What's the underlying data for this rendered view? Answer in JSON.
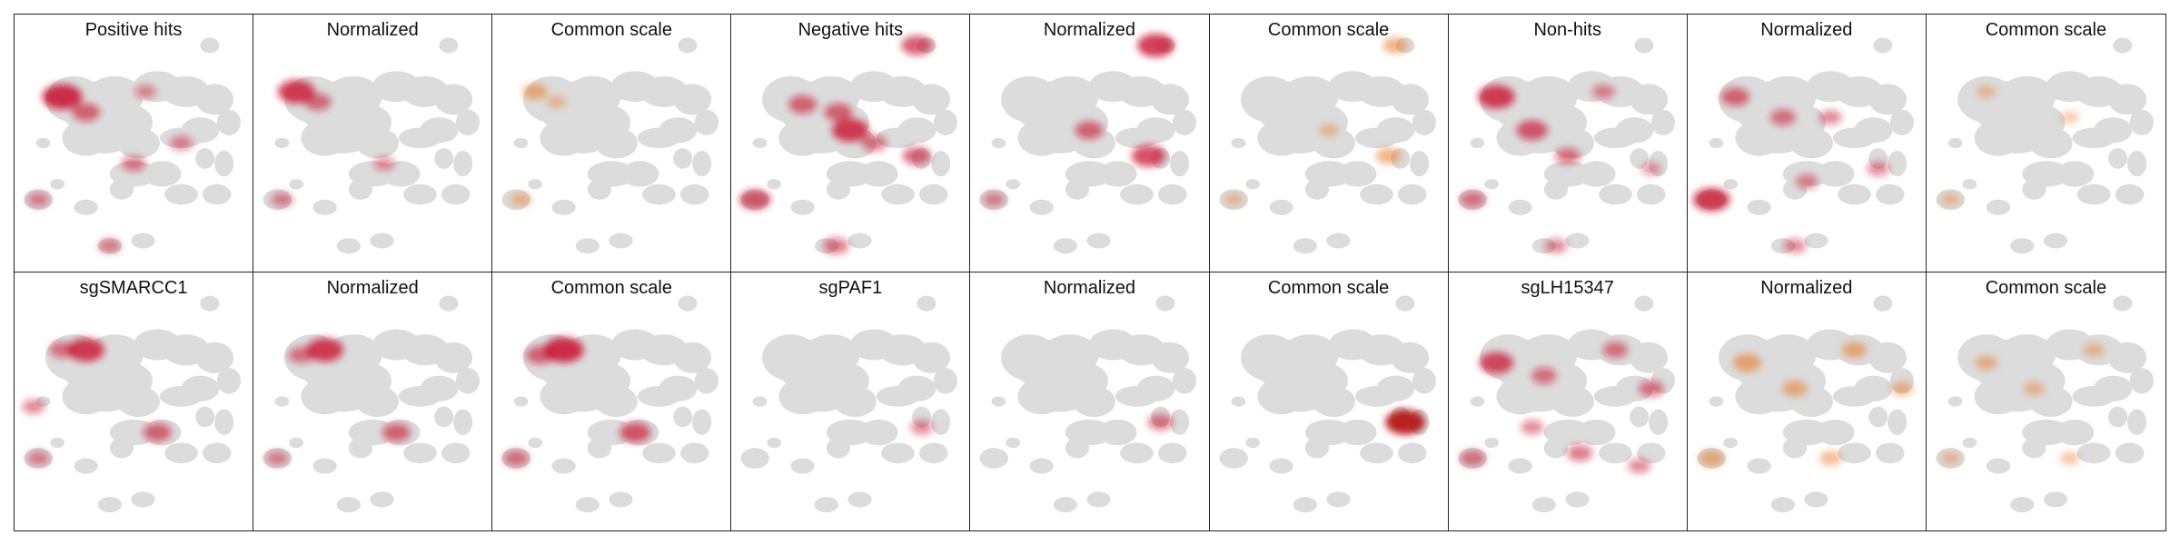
{
  "figure": {
    "panels": [
      {
        "title": "Positive hits",
        "hot": [
          [
            0.2,
            0.32,
            1.0
          ],
          [
            0.3,
            0.38,
            0.6
          ],
          [
            0.55,
            0.3,
            0.35
          ],
          [
            0.7,
            0.5,
            0.4
          ],
          [
            0.1,
            0.72,
            0.4
          ],
          [
            0.5,
            0.58,
            0.45
          ],
          [
            0.4,
            0.9,
            0.4
          ]
        ],
        "color": "#c8102e"
      },
      {
        "title": "Normalized",
        "hot": [
          [
            0.18,
            0.3,
            0.9
          ],
          [
            0.27,
            0.34,
            0.55
          ],
          [
            0.55,
            0.58,
            0.35
          ],
          [
            0.12,
            0.72,
            0.4
          ]
        ],
        "color": "#c8102e"
      },
      {
        "title": "Common scale",
        "hot": [
          [
            0.18,
            0.3,
            0.5
          ],
          [
            0.27,
            0.34,
            0.3
          ],
          [
            0.12,
            0.72,
            0.35
          ]
        ],
        "color": "#e87a2c"
      },
      {
        "title": "Negative hits",
        "hot": [
          [
            0.78,
            0.12,
            0.7
          ],
          [
            0.3,
            0.35,
            0.6
          ],
          [
            0.5,
            0.45,
            0.9
          ],
          [
            0.45,
            0.38,
            0.6
          ],
          [
            0.1,
            0.72,
            0.7
          ],
          [
            0.78,
            0.55,
            0.6
          ],
          [
            0.44,
            0.9,
            0.5
          ],
          [
            0.6,
            0.5,
            0.5
          ]
        ],
        "color": "#c8102e"
      },
      {
        "title": "Normalized",
        "hot": [
          [
            0.78,
            0.12,
            0.9
          ],
          [
            0.5,
            0.45,
            0.6
          ],
          [
            0.75,
            0.55,
            0.8
          ],
          [
            0.1,
            0.72,
            0.4
          ]
        ],
        "color": "#c8102e"
      },
      {
        "title": "Common scale",
        "hot": [
          [
            0.78,
            0.12,
            0.5
          ],
          [
            0.5,
            0.45,
            0.3
          ],
          [
            0.75,
            0.55,
            0.5
          ],
          [
            0.1,
            0.72,
            0.3
          ]
        ],
        "color": "#e87a2c"
      },
      {
        "title": "Non-hits",
        "hot": [
          [
            0.2,
            0.32,
            0.9
          ],
          [
            0.35,
            0.45,
            0.7
          ],
          [
            0.5,
            0.55,
            0.5
          ],
          [
            0.65,
            0.3,
            0.4
          ],
          [
            0.1,
            0.72,
            0.5
          ],
          [
            0.45,
            0.9,
            0.4
          ],
          [
            0.85,
            0.6,
            0.3
          ]
        ],
        "color": "#c8102e"
      },
      {
        "title": "Normalized",
        "hot": [
          [
            0.2,
            0.32,
            0.6
          ],
          [
            0.4,
            0.4,
            0.5
          ],
          [
            0.6,
            0.4,
            0.4
          ],
          [
            0.1,
            0.72,
            0.9
          ],
          [
            0.5,
            0.65,
            0.4
          ],
          [
            0.45,
            0.9,
            0.4
          ],
          [
            0.8,
            0.6,
            0.4
          ]
        ],
        "color": "#c8102e"
      },
      {
        "title": "Common scale",
        "hot": [
          [
            0.25,
            0.3,
            0.3
          ],
          [
            0.6,
            0.4,
            0.25
          ],
          [
            0.1,
            0.72,
            0.3
          ]
        ],
        "color": "#e87a2c"
      },
      {
        "title": "sgSMARCC1",
        "hot": [
          [
            0.3,
            0.3,
            0.9
          ],
          [
            0.2,
            0.3,
            0.5
          ],
          [
            0.6,
            0.62,
            0.6
          ],
          [
            0.08,
            0.52,
            0.4
          ],
          [
            0.1,
            0.72,
            0.4
          ]
        ],
        "color": "#c8102e"
      },
      {
        "title": "Normalized",
        "hot": [
          [
            0.3,
            0.3,
            0.9
          ],
          [
            0.2,
            0.32,
            0.5
          ],
          [
            0.6,
            0.62,
            0.6
          ],
          [
            0.1,
            0.72,
            0.4
          ]
        ],
        "color": "#c8102e"
      },
      {
        "title": "Common scale",
        "hot": [
          [
            0.3,
            0.3,
            1.0
          ],
          [
            0.2,
            0.32,
            0.6
          ],
          [
            0.6,
            0.62,
            0.7
          ],
          [
            0.1,
            0.72,
            0.5
          ]
        ],
        "color": "#c8102e"
      },
      {
        "title": "sgPAF1",
        "hot": [
          [
            0.8,
            0.6,
            0.4
          ]
        ],
        "color": "#c8102e"
      },
      {
        "title": "Normalized",
        "hot": [
          [
            0.8,
            0.58,
            0.5
          ]
        ],
        "color": "#c8102e"
      },
      {
        "title": "Common scale",
        "hot": [
          [
            0.82,
            0.58,
            1.0
          ]
        ],
        "color": "#b00000"
      },
      {
        "title": "sgLH15347",
        "hot": [
          [
            0.2,
            0.35,
            0.8
          ],
          [
            0.4,
            0.4,
            0.5
          ],
          [
            0.7,
            0.3,
            0.5
          ],
          [
            0.85,
            0.45,
            0.5
          ],
          [
            0.1,
            0.72,
            0.5
          ],
          [
            0.55,
            0.7,
            0.5
          ],
          [
            0.8,
            0.75,
            0.4
          ],
          [
            0.35,
            0.6,
            0.4
          ]
        ],
        "color": "#c8102e"
      },
      {
        "title": "Normalized",
        "hot": [
          [
            0.25,
            0.35,
            0.6
          ],
          [
            0.45,
            0.45,
            0.5
          ],
          [
            0.7,
            0.3,
            0.5
          ],
          [
            0.9,
            0.45,
            0.4
          ],
          [
            0.1,
            0.72,
            0.5
          ],
          [
            0.6,
            0.72,
            0.4
          ]
        ],
        "color": "#e87a2c"
      },
      {
        "title": "Common scale",
        "hot": [
          [
            0.25,
            0.35,
            0.4
          ],
          [
            0.45,
            0.45,
            0.35
          ],
          [
            0.7,
            0.3,
            0.35
          ],
          [
            0.1,
            0.72,
            0.3
          ],
          [
            0.6,
            0.72,
            0.3
          ]
        ],
        "color": "#e87a2c"
      }
    ]
  }
}
